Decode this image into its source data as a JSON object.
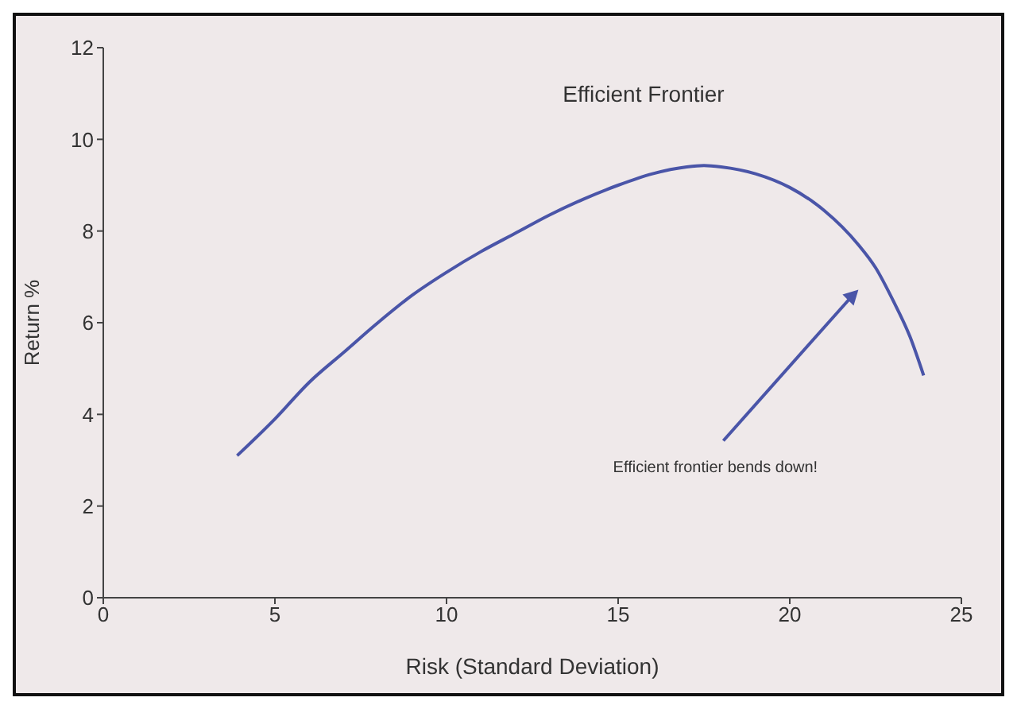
{
  "chart_data": {
    "type": "line",
    "title": "Efficient Frontier",
    "xlabel": "Risk (Standard Deviation)",
    "ylabel": "Return %",
    "x": [
      3.9,
      5,
      6,
      7,
      8,
      9,
      10,
      11,
      12,
      13,
      14,
      15,
      16,
      17,
      17.5,
      18,
      19,
      20,
      21,
      22,
      22.5,
      23,
      23.5,
      23.9
    ],
    "series": [
      {
        "color": "#4a55a8",
        "values": [
          3.1,
          3.9,
          4.7,
          5.35,
          6.0,
          6.6,
          7.1,
          7.55,
          7.95,
          8.35,
          8.7,
          9.0,
          9.25,
          9.4,
          9.43,
          9.4,
          9.25,
          8.95,
          8.45,
          7.7,
          7.2,
          6.5,
          5.7,
          4.85
        ]
      }
    ],
    "xlim": [
      0,
      25
    ],
    "xticks": [
      0,
      5,
      10,
      15,
      20,
      25
    ],
    "ylim": [
      0,
      12
    ],
    "yticks": [
      0,
      2,
      4,
      6,
      8,
      10,
      12
    ],
    "grid": false,
    "legend": false,
    "marker": "none",
    "line_style": "solid",
    "annotations": [
      "Efficient frontier bends down!"
    ]
  }
}
